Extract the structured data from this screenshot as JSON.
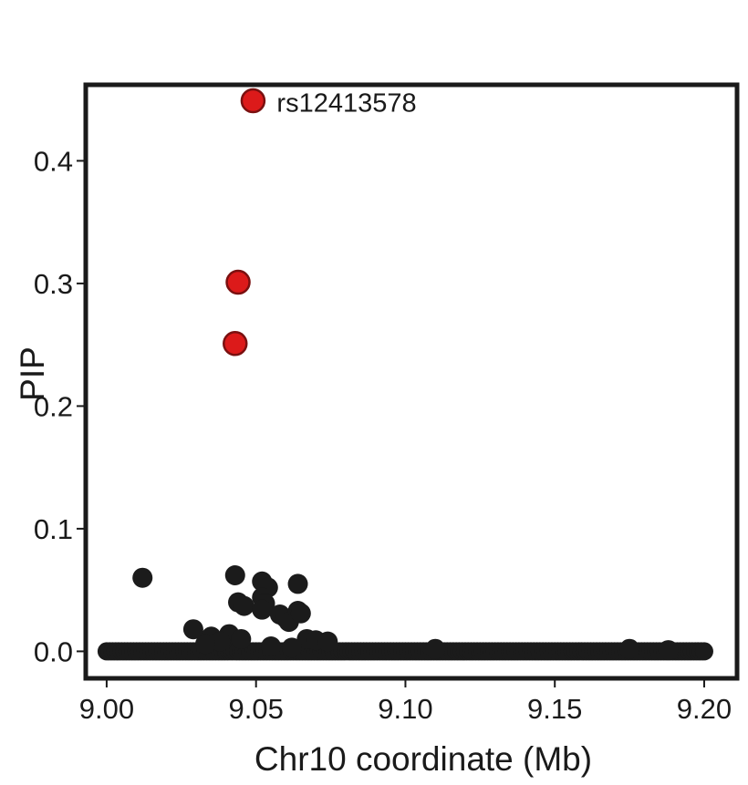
{
  "chart_data": {
    "type": "scatter",
    "title": "",
    "xlabel": "Chr10 coordinate (Mb)",
    "ylabel": "PIP",
    "xlim": [
      8.993,
      9.211
    ],
    "ylim": [
      -0.022,
      0.462
    ],
    "x_ticks": [
      9.0,
      9.05,
      9.1,
      9.15,
      9.2
    ],
    "x_tick_labels": [
      "9.00",
      "9.05",
      "9.10",
      "9.15",
      "9.20"
    ],
    "y_ticks": [
      0.0,
      0.1,
      0.2,
      0.3,
      0.4
    ],
    "y_tick_labels": [
      "0.0",
      "0.1",
      "0.2",
      "0.3",
      "0.4"
    ],
    "grid": false,
    "legend": "none",
    "colors": {
      "highlight": "#dc1a1a",
      "highlight_edge": "#7a1010",
      "default": "#1b1b1b"
    },
    "series": [
      {
        "color": "#dc1a1a",
        "points": [
          {
            "x": 9.049,
            "y": 0.449,
            "label": "rs12413578"
          },
          {
            "x": 9.044,
            "y": 0.301
          },
          {
            "x": 9.043,
            "y": 0.251
          }
        ]
      },
      {
        "color": "#1b1b1b",
        "points": [
          {
            "x": 9.012,
            "y": 0.06
          },
          {
            "x": 9.043,
            "y": 0.062
          },
          {
            "x": 9.052,
            "y": 0.057
          },
          {
            "x": 9.054,
            "y": 0.052
          },
          {
            "x": 9.064,
            "y": 0.055
          },
          {
            "x": 9.044,
            "y": 0.04
          },
          {
            "x": 9.046,
            "y": 0.037
          },
          {
            "x": 9.052,
            "y": 0.044
          },
          {
            "x": 9.053,
            "y": 0.039
          },
          {
            "x": 9.052,
            "y": 0.034
          },
          {
            "x": 9.058,
            "y": 0.03
          },
          {
            "x": 9.06,
            "y": 0.027
          },
          {
            "x": 9.061,
            "y": 0.024
          },
          {
            "x": 9.064,
            "y": 0.033
          },
          {
            "x": 9.065,
            "y": 0.031
          },
          {
            "x": 9.029,
            "y": 0.018
          },
          {
            "x": 9.035,
            "y": 0.012
          },
          {
            "x": 9.041,
            "y": 0.014
          },
          {
            "x": 9.038,
            "y": 0.008
          },
          {
            "x": 9.033,
            "y": 0.006
          },
          {
            "x": 9.045,
            "y": 0.01
          },
          {
            "x": 9.067,
            "y": 0.01
          },
          {
            "x": 9.07,
            "y": 0.009
          },
          {
            "x": 9.074,
            "y": 0.008
          },
          {
            "x": 9.055,
            "y": 0.004
          },
          {
            "x": 9.062,
            "y": 0.003
          },
          {
            "x": 9.11,
            "y": 0.002
          },
          {
            "x": 9.175,
            "y": 0.002
          },
          {
            "x": 9.188,
            "y": 0.001
          }
        ]
      }
    ]
  }
}
